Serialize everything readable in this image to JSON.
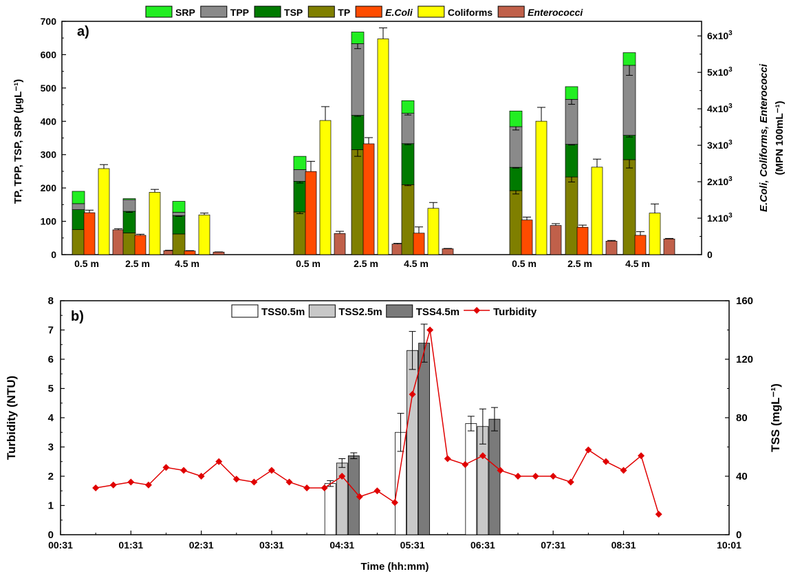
{
  "chart_data": [
    {
      "panel_label": "a)",
      "type": "bar",
      "stacking": "TP, TSP, TPP and SRP stacked; E.Coli, Coliforms and Enterococci side by side",
      "groups": [
        "0.5 m",
        "2.5 m",
        "4.5 m",
        "0.5 m",
        "2.5 m",
        "4.5 m",
        "0.5 m",
        "2.5 m",
        "4.5 m"
      ],
      "ylabel_left": "TP, TPP, TSP, SRP (µgL⁻¹)",
      "ylabel_right_line1": "E.Coli, Coliforms, Enterococci",
      "ylabel_right_line2": "(MPN 100mL⁻¹)",
      "ylim_left": [
        0,
        700
      ],
      "yticks_left": [
        "0",
        "100",
        "200",
        "300",
        "400",
        "500",
        "600",
        "700"
      ],
      "ylim_right": [
        0,
        6400
      ],
      "yticks_right": [
        {
          "value": 0,
          "base": "0",
          "exp": ""
        },
        {
          "value": 1000,
          "base": "1x10",
          "exp": "3"
        },
        {
          "value": 2000,
          "base": "2x10",
          "exp": "3"
        },
        {
          "value": 3000,
          "base": "3x10",
          "exp": "3"
        },
        {
          "value": 4000,
          "base": "4x10",
          "exp": "3"
        },
        {
          "value": 5000,
          "base": "5x10",
          "exp": "3"
        },
        {
          "value": 6000,
          "base": "6x10",
          "exp": "3"
        }
      ],
      "legend_placement": "top",
      "legend": [
        {
          "name": "SRP",
          "color": "#22ee22",
          "italic": false
        },
        {
          "name": "TPP",
          "color": "#8a8a8a",
          "italic": false
        },
        {
          "name": "TSP",
          "color": "#007a00",
          "italic": false
        },
        {
          "name": "TP",
          "color": "#7f7f00",
          "italic": false
        },
        {
          "name": "E.Coli",
          "color": "#ff4c00",
          "italic": true
        },
        {
          "name": "Coliforms",
          "color": "#ffff00",
          "italic": false
        },
        {
          "name": "Enterococci",
          "color": "#c0604a",
          "italic": true
        }
      ],
      "stacked_series": [
        {
          "name": "TP",
          "color": "#7f7f00",
          "values": [
            75,
            65,
            62,
            128,
            315,
            210,
            192,
            233,
            285
          ],
          "errors": [
            0,
            0,
            0,
            5,
            20,
            3,
            10,
            15,
            25
          ]
        },
        {
          "name": "TSP",
          "color": "#007a00",
          "values": [
            60,
            65,
            55,
            92,
            103,
            123,
            70,
            98,
            73
          ],
          "errors": [
            0,
            3,
            2,
            5,
            3,
            3,
            2,
            2,
            5
          ]
        },
        {
          "name": "TPP",
          "color": "#8a8a8a",
          "values": [
            18,
            35,
            10,
            35,
            215,
            91,
            122,
            135,
            210
          ],
          "errors": [
            0,
            0,
            0,
            0,
            15,
            5,
            10,
            15,
            30
          ]
        },
        {
          "name": "SRP",
          "color": "#22ee22",
          "values": [
            37,
            3,
            33,
            40,
            35,
            38,
            47,
            38,
            38
          ],
          "errors": [
            0,
            0,
            0,
            0,
            0,
            0,
            0,
            0,
            0
          ]
        }
      ],
      "bacteria_series": [
        {
          "name": "E.Coli",
          "color": "#ff4c00",
          "values": [
            1150,
            530,
            100,
            2280,
            3040,
            590,
            950,
            750,
            530
          ],
          "errors": [
            70,
            30,
            10,
            280,
            170,
            170,
            80,
            60,
            100
          ]
        },
        {
          "name": "Coliforms",
          "color": "#ffff00",
          "values": [
            2360,
            1710,
            1090,
            3680,
            5920,
            1270,
            3660,
            2400,
            1140
          ],
          "errors": [
            110,
            80,
            50,
            380,
            300,
            160,
            380,
            220,
            250
          ]
        },
        {
          "name": "Enterococci",
          "color": "#c0604a",
          "values": [
            680,
            110,
            70,
            580,
            290,
            160,
            800,
            370,
            430
          ],
          "errors": [
            30,
            10,
            5,
            60,
            20,
            10,
            50,
            20,
            15
          ]
        }
      ]
    },
    {
      "panel_label": "b)",
      "type": "bar+line",
      "xlabel": "Time (hh:mm)",
      "ylabel_left": "Turbidity (NTU)",
      "ylabel_right": "TSS (mgL⁻¹)",
      "ylim_left": [
        0,
        8
      ],
      "ylim_right": [
        0,
        160
      ],
      "yticks_left": [
        "0",
        "1",
        "2",
        "3",
        "4",
        "5",
        "6",
        "7",
        "8"
      ],
      "yticks_right": [
        "0",
        "40",
        "80",
        "120",
        "160"
      ],
      "xlim": [
        "00:31",
        "10:01"
      ],
      "xticks": [
        "00:31",
        "01:31",
        "02:31",
        "03:31",
        "04:31",
        "05:31",
        "06:31",
        "07:31",
        "08:31",
        "10:01"
      ],
      "legend_placement": "top-center",
      "legend": [
        {
          "name": "TSS0.5m",
          "color": "#ffffff"
        },
        {
          "name": "TSS2.5m",
          "color": "#c8c8c8"
        },
        {
          "name": "TSS4.5m",
          "color": "#7a7a7a"
        },
        {
          "name": "Turbidity",
          "color": "#e00000"
        }
      ],
      "tss_series": [
        {
          "name": "TSS0.5m",
          "color": "#ffffff",
          "times": [
            "04:21",
            "05:21",
            "06:21"
          ],
          "values": [
            35,
            70,
            76
          ],
          "errors": [
            2,
            13,
            5
          ]
        },
        {
          "name": "TSS2.5m",
          "color": "#c8c8c8",
          "times": [
            "04:31",
            "05:31",
            "06:31"
          ],
          "values": [
            49,
            126,
            74
          ],
          "errors": [
            3,
            13,
            12
          ]
        },
        {
          "name": "TSS4.5m",
          "color": "#7a7a7a",
          "times": [
            "04:41",
            "05:41",
            "06:41"
          ],
          "values": [
            54,
            131,
            79
          ],
          "errors": [
            2,
            13,
            8
          ]
        }
      ],
      "turbidity_series": {
        "name": "Turbidity",
        "color": "#e00000",
        "times": [
          "01:01",
          "01:16",
          "01:31",
          "01:46",
          "02:01",
          "02:16",
          "02:31",
          "02:46",
          "03:01",
          "03:16",
          "03:31",
          "03:46",
          "04:01",
          "04:16",
          "04:31",
          "04:46",
          "05:01",
          "05:16",
          "05:31",
          "05:46",
          "06:01",
          "06:16",
          "06:31",
          "06:46",
          "07:01",
          "07:16",
          "07:31",
          "07:46",
          "08:01",
          "08:16",
          "08:31",
          "08:46",
          "09:01"
        ],
        "values": [
          1.6,
          1.7,
          1.8,
          1.7,
          2.3,
          2.2,
          2.0,
          2.5,
          1.9,
          1.8,
          2.2,
          1.8,
          1.6,
          1.6,
          2.0,
          1.3,
          1.5,
          1.1,
          4.8,
          7.0,
          2.6,
          2.4,
          2.7,
          2.2,
          2.0,
          2.0,
          2.0,
          1.8,
          2.9,
          2.5,
          2.2,
          2.7,
          0.7
        ]
      }
    }
  ]
}
